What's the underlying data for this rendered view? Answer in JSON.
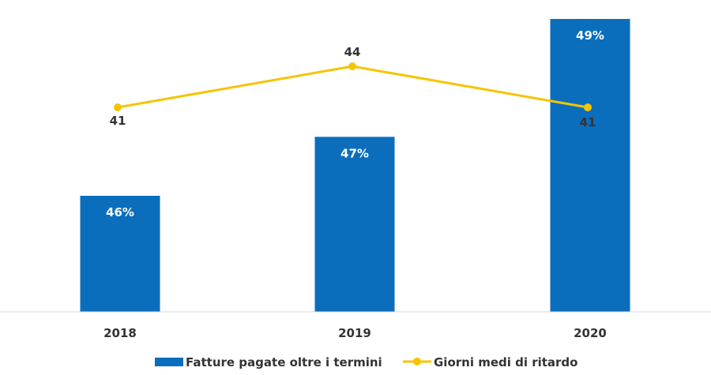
{
  "chart_data": {
    "type": "bar+line",
    "categories": [
      "2018",
      "2019",
      "2020"
    ],
    "series": [
      {
        "name": "Fatture pagate oltre i termini",
        "kind": "bar",
        "values": [
          46,
          47,
          49
        ],
        "labels": [
          "46%",
          "47%",
          "49%"
        ],
        "color": "#0a6ebd"
      },
      {
        "name": "Giorni medi di ritardo",
        "kind": "line",
        "values": [
          41,
          44,
          41
        ],
        "labels": [
          "41",
          "44",
          "41"
        ],
        "color": "#f5c400"
      }
    ],
    "legend_position": "bottom",
    "grid": false
  }
}
